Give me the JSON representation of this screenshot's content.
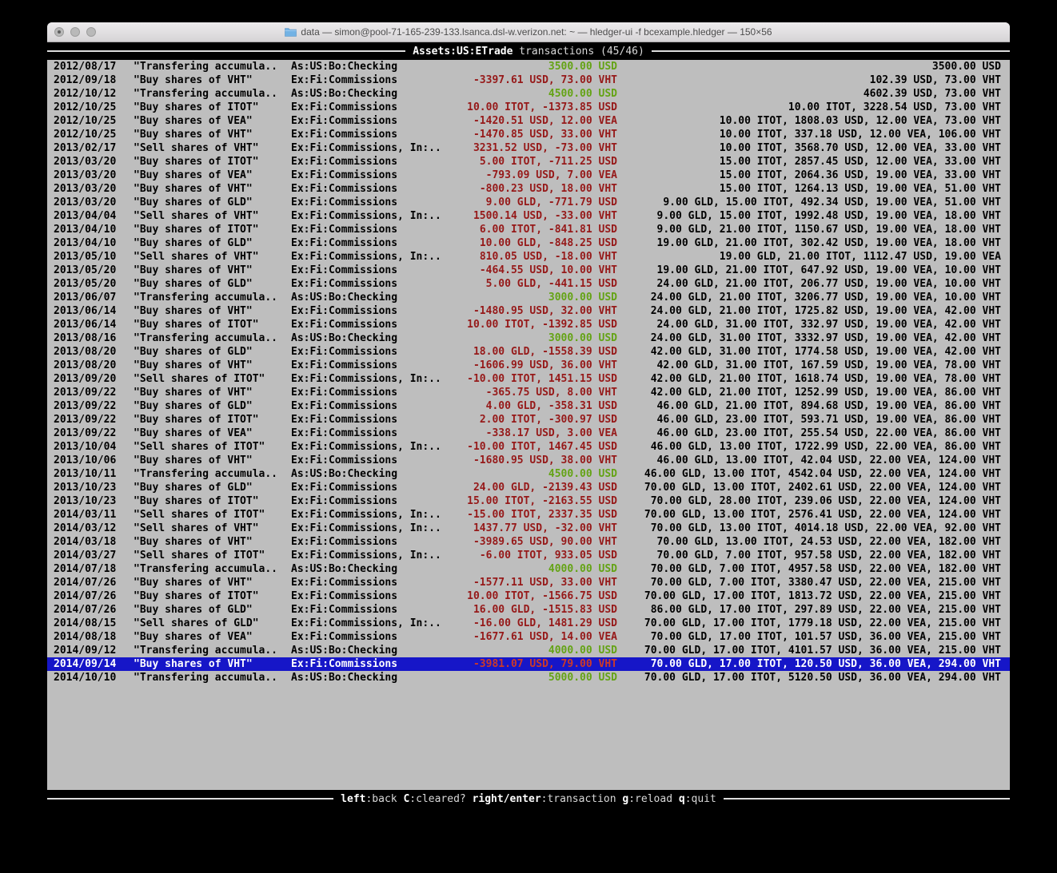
{
  "colors": {
    "terminal_bg": "#bebebe",
    "accent_blue": "#1616c8",
    "amount_red": "#961919",
    "amount_red_selected": "#cd3a28",
    "amount_green": "#64a315"
  },
  "window": {
    "title": "data — simon@pool-71-165-239-133.lsanca.dsl-w.verizon.net: ~ — hledger-ui -f bcexample.hledger — 150×56"
  },
  "screen": {
    "account": "Assets:US:ETrade",
    "subtitle": "transactions (45/46)"
  },
  "footer": {
    "keys": [
      {
        "key": "left",
        "label": "back"
      },
      {
        "key": "C",
        "label": "cleared?"
      },
      {
        "key": "right/enter",
        "label": "transaction"
      },
      {
        "key": "g",
        "label": "reload"
      },
      {
        "key": "q",
        "label": "quit"
      }
    ]
  },
  "register": {
    "rows": [
      {
        "date": "2012/08/17",
        "desc": "\"Transfering accumula..",
        "accounts": "As:US:Bo:Checking",
        "change": "3500.00 USD",
        "change_color": "green",
        "balance": "3500.00 USD",
        "selected": false
      },
      {
        "date": "2012/09/18",
        "desc": "\"Buy shares of VHT\"",
        "accounts": "Ex:Fi:Commissions",
        "change": "-3397.61 USD, 73.00 VHT",
        "change_color": "red",
        "balance": "102.39 USD, 73.00 VHT",
        "selected": false
      },
      {
        "date": "2012/10/12",
        "desc": "\"Transfering accumula..",
        "accounts": "As:US:Bo:Checking",
        "change": "4500.00 USD",
        "change_color": "green",
        "balance": "4602.39 USD, 73.00 VHT",
        "selected": false
      },
      {
        "date": "2012/10/25",
        "desc": "\"Buy shares of ITOT\"",
        "accounts": "Ex:Fi:Commissions",
        "change": "10.00 ITOT, -1373.85 USD",
        "change_color": "red",
        "balance": "10.00 ITOT, 3228.54 USD, 73.00 VHT",
        "selected": false
      },
      {
        "date": "2012/10/25",
        "desc": "\"Buy shares of VEA\"",
        "accounts": "Ex:Fi:Commissions",
        "change": "-1420.51 USD, 12.00 VEA",
        "change_color": "red",
        "balance": "10.00 ITOT, 1808.03 USD, 12.00 VEA, 73.00 VHT",
        "selected": false
      },
      {
        "date": "2012/10/25",
        "desc": "\"Buy shares of VHT\"",
        "accounts": "Ex:Fi:Commissions",
        "change": "-1470.85 USD, 33.00 VHT",
        "change_color": "red",
        "balance": "10.00 ITOT, 337.18 USD, 12.00 VEA, 106.00 VHT",
        "selected": false
      },
      {
        "date": "2013/02/17",
        "desc": "\"Sell shares of VHT\"",
        "accounts": "Ex:Fi:Commissions, In:..",
        "change": "3231.52 USD, -73.00 VHT",
        "change_color": "red",
        "balance": "10.00 ITOT, 3568.70 USD, 12.00 VEA, 33.00 VHT",
        "selected": false
      },
      {
        "date": "2013/03/20",
        "desc": "\"Buy shares of ITOT\"",
        "accounts": "Ex:Fi:Commissions",
        "change": "5.00 ITOT, -711.25 USD",
        "change_color": "red",
        "balance": "15.00 ITOT, 2857.45 USD, 12.00 VEA, 33.00 VHT",
        "selected": false
      },
      {
        "date": "2013/03/20",
        "desc": "\"Buy shares of VEA\"",
        "accounts": "Ex:Fi:Commissions",
        "change": "-793.09 USD, 7.00 VEA",
        "change_color": "red",
        "balance": "15.00 ITOT, 2064.36 USD, 19.00 VEA, 33.00 VHT",
        "selected": false
      },
      {
        "date": "2013/03/20",
        "desc": "\"Buy shares of VHT\"",
        "accounts": "Ex:Fi:Commissions",
        "change": "-800.23 USD, 18.00 VHT",
        "change_color": "red",
        "balance": "15.00 ITOT, 1264.13 USD, 19.00 VEA, 51.00 VHT",
        "selected": false
      },
      {
        "date": "2013/03/20",
        "desc": "\"Buy shares of GLD\"",
        "accounts": "Ex:Fi:Commissions",
        "change": "9.00 GLD, -771.79 USD",
        "change_color": "red",
        "balance": "9.00 GLD, 15.00 ITOT, 492.34 USD, 19.00 VEA, 51.00 VHT",
        "selected": false
      },
      {
        "date": "2013/04/04",
        "desc": "\"Sell shares of VHT\"",
        "accounts": "Ex:Fi:Commissions, In:..",
        "change": "1500.14 USD, -33.00 VHT",
        "change_color": "red",
        "balance": "9.00 GLD, 15.00 ITOT, 1992.48 USD, 19.00 VEA, 18.00 VHT",
        "selected": false
      },
      {
        "date": "2013/04/10",
        "desc": "\"Buy shares of ITOT\"",
        "accounts": "Ex:Fi:Commissions",
        "change": "6.00 ITOT, -841.81 USD",
        "change_color": "red",
        "balance": "9.00 GLD, 21.00 ITOT, 1150.67 USD, 19.00 VEA, 18.00 VHT",
        "selected": false
      },
      {
        "date": "2013/04/10",
        "desc": "\"Buy shares of GLD\"",
        "accounts": "Ex:Fi:Commissions",
        "change": "10.00 GLD, -848.25 USD",
        "change_color": "red",
        "balance": "19.00 GLD, 21.00 ITOT, 302.42 USD, 19.00 VEA, 18.00 VHT",
        "selected": false
      },
      {
        "date": "2013/05/10",
        "desc": "\"Sell shares of VHT\"",
        "accounts": "Ex:Fi:Commissions, In:..",
        "change": "810.05 USD, -18.00 VHT",
        "change_color": "red",
        "balance": "19.00 GLD, 21.00 ITOT, 1112.47 USD, 19.00 VEA",
        "selected": false
      },
      {
        "date": "2013/05/20",
        "desc": "\"Buy shares of VHT\"",
        "accounts": "Ex:Fi:Commissions",
        "change": "-464.55 USD, 10.00 VHT",
        "change_color": "red",
        "balance": "19.00 GLD, 21.00 ITOT, 647.92 USD, 19.00 VEA, 10.00 VHT",
        "selected": false
      },
      {
        "date": "2013/05/20",
        "desc": "\"Buy shares of GLD\"",
        "accounts": "Ex:Fi:Commissions",
        "change": "5.00 GLD, -441.15 USD",
        "change_color": "red",
        "balance": "24.00 GLD, 21.00 ITOT, 206.77 USD, 19.00 VEA, 10.00 VHT",
        "selected": false
      },
      {
        "date": "2013/06/07",
        "desc": "\"Transfering accumula..",
        "accounts": "As:US:Bo:Checking",
        "change": "3000.00 USD",
        "change_color": "green",
        "balance": "24.00 GLD, 21.00 ITOT, 3206.77 USD, 19.00 VEA, 10.00 VHT",
        "selected": false
      },
      {
        "date": "2013/06/14",
        "desc": "\"Buy shares of VHT\"",
        "accounts": "Ex:Fi:Commissions",
        "change": "-1480.95 USD, 32.00 VHT",
        "change_color": "red",
        "balance": "24.00 GLD, 21.00 ITOT, 1725.82 USD, 19.00 VEA, 42.00 VHT",
        "selected": false
      },
      {
        "date": "2013/06/14",
        "desc": "\"Buy shares of ITOT\"",
        "accounts": "Ex:Fi:Commissions",
        "change": "10.00 ITOT, -1392.85 USD",
        "change_color": "red",
        "balance": "24.00 GLD, 31.00 ITOT, 332.97 USD, 19.00 VEA, 42.00 VHT",
        "selected": false
      },
      {
        "date": "2013/08/16",
        "desc": "\"Transfering accumula..",
        "accounts": "As:US:Bo:Checking",
        "change": "3000.00 USD",
        "change_color": "green",
        "balance": "24.00 GLD, 31.00 ITOT, 3332.97 USD, 19.00 VEA, 42.00 VHT",
        "selected": false
      },
      {
        "date": "2013/08/20",
        "desc": "\"Buy shares of GLD\"",
        "accounts": "Ex:Fi:Commissions",
        "change": "18.00 GLD, -1558.39 USD",
        "change_color": "red",
        "balance": "42.00 GLD, 31.00 ITOT, 1774.58 USD, 19.00 VEA, 42.00 VHT",
        "selected": false
      },
      {
        "date": "2013/08/20",
        "desc": "\"Buy shares of VHT\"",
        "accounts": "Ex:Fi:Commissions",
        "change": "-1606.99 USD, 36.00 VHT",
        "change_color": "red",
        "balance": "42.00 GLD, 31.00 ITOT, 167.59 USD, 19.00 VEA, 78.00 VHT",
        "selected": false
      },
      {
        "date": "2013/09/20",
        "desc": "\"Sell shares of ITOT\"",
        "accounts": "Ex:Fi:Commissions, In:..",
        "change": "-10.00 ITOT, 1451.15 USD",
        "change_color": "red",
        "balance": "42.00 GLD, 21.00 ITOT, 1618.74 USD, 19.00 VEA, 78.00 VHT",
        "selected": false
      },
      {
        "date": "2013/09/22",
        "desc": "\"Buy shares of VHT\"",
        "accounts": "Ex:Fi:Commissions",
        "change": "-365.75 USD, 8.00 VHT",
        "change_color": "red",
        "balance": "42.00 GLD, 21.00 ITOT, 1252.99 USD, 19.00 VEA, 86.00 VHT",
        "selected": false
      },
      {
        "date": "2013/09/22",
        "desc": "\"Buy shares of GLD\"",
        "accounts": "Ex:Fi:Commissions",
        "change": "4.00 GLD, -358.31 USD",
        "change_color": "red",
        "balance": "46.00 GLD, 21.00 ITOT, 894.68 USD, 19.00 VEA, 86.00 VHT",
        "selected": false
      },
      {
        "date": "2013/09/22",
        "desc": "\"Buy shares of ITOT\"",
        "accounts": "Ex:Fi:Commissions",
        "change": "2.00 ITOT, -300.97 USD",
        "change_color": "red",
        "balance": "46.00 GLD, 23.00 ITOT, 593.71 USD, 19.00 VEA, 86.00 VHT",
        "selected": false
      },
      {
        "date": "2013/09/22",
        "desc": "\"Buy shares of VEA\"",
        "accounts": "Ex:Fi:Commissions",
        "change": "-338.17 USD, 3.00 VEA",
        "change_color": "red",
        "balance": "46.00 GLD, 23.00 ITOT, 255.54 USD, 22.00 VEA, 86.00 VHT",
        "selected": false
      },
      {
        "date": "2013/10/04",
        "desc": "\"Sell shares of ITOT\"",
        "accounts": "Ex:Fi:Commissions, In:..",
        "change": "-10.00 ITOT, 1467.45 USD",
        "change_color": "red",
        "balance": "46.00 GLD, 13.00 ITOT, 1722.99 USD, 22.00 VEA, 86.00 VHT",
        "selected": false
      },
      {
        "date": "2013/10/06",
        "desc": "\"Buy shares of VHT\"",
        "accounts": "Ex:Fi:Commissions",
        "change": "-1680.95 USD, 38.00 VHT",
        "change_color": "red",
        "balance": "46.00 GLD, 13.00 ITOT, 42.04 USD, 22.00 VEA, 124.00 VHT",
        "selected": false
      },
      {
        "date": "2013/10/11",
        "desc": "\"Transfering accumula..",
        "accounts": "As:US:Bo:Checking",
        "change": "4500.00 USD",
        "change_color": "green",
        "balance": "46.00 GLD, 13.00 ITOT, 4542.04 USD, 22.00 VEA, 124.00 VHT",
        "selected": false
      },
      {
        "date": "2013/10/23",
        "desc": "\"Buy shares of GLD\"",
        "accounts": "Ex:Fi:Commissions",
        "change": "24.00 GLD, -2139.43 USD",
        "change_color": "red",
        "balance": "70.00 GLD, 13.00 ITOT, 2402.61 USD, 22.00 VEA, 124.00 VHT",
        "selected": false
      },
      {
        "date": "2013/10/23",
        "desc": "\"Buy shares of ITOT\"",
        "accounts": "Ex:Fi:Commissions",
        "change": "15.00 ITOT, -2163.55 USD",
        "change_color": "red",
        "balance": "70.00 GLD, 28.00 ITOT, 239.06 USD, 22.00 VEA, 124.00 VHT",
        "selected": false
      },
      {
        "date": "2014/03/11",
        "desc": "\"Sell shares of ITOT\"",
        "accounts": "Ex:Fi:Commissions, In:..",
        "change": "-15.00 ITOT, 2337.35 USD",
        "change_color": "red",
        "balance": "70.00 GLD, 13.00 ITOT, 2576.41 USD, 22.00 VEA, 124.00 VHT",
        "selected": false
      },
      {
        "date": "2014/03/12",
        "desc": "\"Sell shares of VHT\"",
        "accounts": "Ex:Fi:Commissions, In:..",
        "change": "1437.77 USD, -32.00 VHT",
        "change_color": "red",
        "balance": "70.00 GLD, 13.00 ITOT, 4014.18 USD, 22.00 VEA, 92.00 VHT",
        "selected": false
      },
      {
        "date": "2014/03/18",
        "desc": "\"Buy shares of VHT\"",
        "accounts": "Ex:Fi:Commissions",
        "change": "-3989.65 USD, 90.00 VHT",
        "change_color": "red",
        "balance": "70.00 GLD, 13.00 ITOT, 24.53 USD, 22.00 VEA, 182.00 VHT",
        "selected": false
      },
      {
        "date": "2014/03/27",
        "desc": "\"Sell shares of ITOT\"",
        "accounts": "Ex:Fi:Commissions, In:..",
        "change": "-6.00 ITOT, 933.05 USD",
        "change_color": "red",
        "balance": "70.00 GLD, 7.00 ITOT, 957.58 USD, 22.00 VEA, 182.00 VHT",
        "selected": false
      },
      {
        "date": "2014/07/18",
        "desc": "\"Transfering accumula..",
        "accounts": "As:US:Bo:Checking",
        "change": "4000.00 USD",
        "change_color": "green",
        "balance": "70.00 GLD, 7.00 ITOT, 4957.58 USD, 22.00 VEA, 182.00 VHT",
        "selected": false
      },
      {
        "date": "2014/07/26",
        "desc": "\"Buy shares of VHT\"",
        "accounts": "Ex:Fi:Commissions",
        "change": "-1577.11 USD, 33.00 VHT",
        "change_color": "red",
        "balance": "70.00 GLD, 7.00 ITOT, 3380.47 USD, 22.00 VEA, 215.00 VHT",
        "selected": false
      },
      {
        "date": "2014/07/26",
        "desc": "\"Buy shares of ITOT\"",
        "accounts": "Ex:Fi:Commissions",
        "change": "10.00 ITOT, -1566.75 USD",
        "change_color": "red",
        "balance": "70.00 GLD, 17.00 ITOT, 1813.72 USD, 22.00 VEA, 215.00 VHT",
        "selected": false
      },
      {
        "date": "2014/07/26",
        "desc": "\"Buy shares of GLD\"",
        "accounts": "Ex:Fi:Commissions",
        "change": "16.00 GLD, -1515.83 USD",
        "change_color": "red",
        "balance": "86.00 GLD, 17.00 ITOT, 297.89 USD, 22.00 VEA, 215.00 VHT",
        "selected": false
      },
      {
        "date": "2014/08/15",
        "desc": "\"Sell shares of GLD\"",
        "accounts": "Ex:Fi:Commissions, In:..",
        "change": "-16.00 GLD, 1481.29 USD",
        "change_color": "red",
        "balance": "70.00 GLD, 17.00 ITOT, 1779.18 USD, 22.00 VEA, 215.00 VHT",
        "selected": false
      },
      {
        "date": "2014/08/18",
        "desc": "\"Buy shares of VEA\"",
        "accounts": "Ex:Fi:Commissions",
        "change": "-1677.61 USD, 14.00 VEA",
        "change_color": "red",
        "balance": "70.00 GLD, 17.00 ITOT, 101.57 USD, 36.00 VEA, 215.00 VHT",
        "selected": false
      },
      {
        "date": "2014/09/12",
        "desc": "\"Transfering accumula..",
        "accounts": "As:US:Bo:Checking",
        "change": "4000.00 USD",
        "change_color": "green",
        "balance": "70.00 GLD, 17.00 ITOT, 4101.57 USD, 36.00 VEA, 215.00 VHT",
        "selected": false
      },
      {
        "date": "2014/09/14",
        "desc": "\"Buy shares of VHT\"",
        "accounts": "Ex:Fi:Commissions",
        "change": "-3981.07 USD, 79.00 VHT",
        "change_color": "red",
        "balance": "70.00 GLD, 17.00 ITOT, 120.50 USD, 36.00 VEA, 294.00 VHT",
        "selected": true
      },
      {
        "date": "2014/10/10",
        "desc": "\"Transfering accumula..",
        "accounts": "As:US:Bo:Checking",
        "change": "5000.00 USD",
        "change_color": "green",
        "balance": "70.00 GLD, 17.00 ITOT, 5120.50 USD, 36.00 VEA, 294.00 VHT",
        "selected": false
      }
    ]
  }
}
